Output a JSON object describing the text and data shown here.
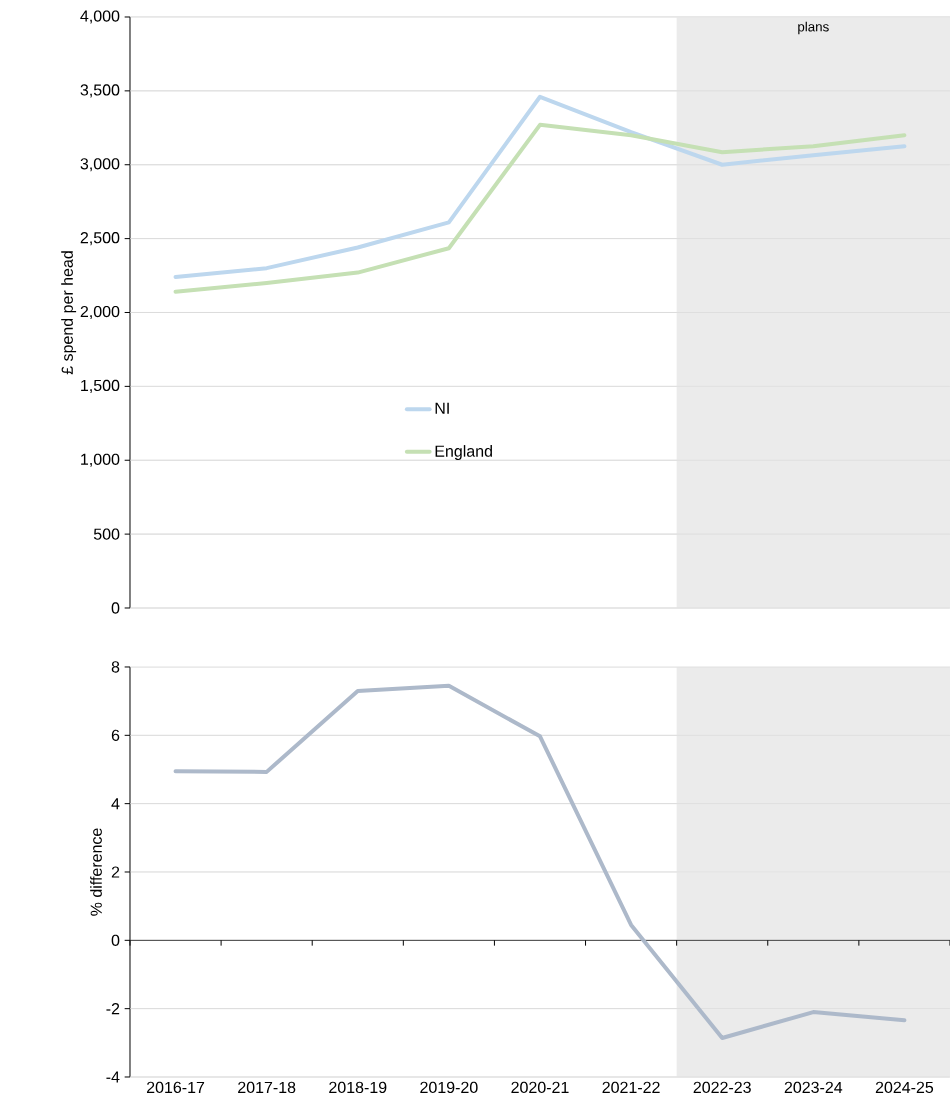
{
  "chart_data": [
    {
      "type": "line",
      "categories": [
        "2016-17",
        "2017-18",
        "2018-19",
        "2019-20",
        "2020-21",
        "2021-22",
        "2022-23",
        "2023-24",
        "2024-25"
      ],
      "series": [
        {
          "name": "NI",
          "color": "#bdd7ee",
          "values": [
            2240,
            2300,
            2440,
            2610,
            3460,
            3220,
            3000,
            3065,
            3125
          ]
        },
        {
          "name": "England",
          "color": "#c5e0b4",
          "values": [
            2140,
            2200,
            2270,
            2435,
            3270,
            3200,
            3085,
            3125,
            3200
          ]
        }
      ],
      "ylabel": "£ spend per head",
      "ylim": [
        0,
        4000
      ],
      "yticks": [
        0,
        {
          "value": 500,
          "label": "500"
        },
        {
          "value": 1000,
          "label": "1,000"
        },
        {
          "value": 1500,
          "label": "1,500"
        },
        {
          "value": 2000,
          "label": "2,000"
        },
        {
          "value": 2500,
          "label": "2,500"
        },
        {
          "value": 3000,
          "label": "3,000"
        },
        {
          "value": 3500,
          "label": "3,500"
        },
        {
          "value": 4000,
          "label": "4,000"
        }
      ],
      "grid": "y",
      "legend": "left",
      "tick_labels": "y",
      "bands": [
        {
          "axis": "x",
          "from": "2022-23",
          "to": "2024-25",
          "label": "plans",
          "color": "#ebebeb"
        }
      ]
    },
    {
      "type": "line",
      "categories": [
        "2016-17",
        "2017-18",
        "2018-19",
        "2019-20",
        "2020-21",
        "2021-22",
        "2022-23",
        "2023-24",
        "2024-25"
      ],
      "values": [
        4.95,
        4.93,
        7.3,
        7.45,
        5.97,
        0.45,
        -2.86,
        -2.1,
        -2.34
      ],
      "color": "#adb9ca",
      "ylabel": "% difference",
      "ylim": [
        -4,
        8
      ],
      "yticks": [
        -4,
        -2,
        0,
        2,
        4,
        6,
        8
      ],
      "grid": "y",
      "bands": [
        {
          "axis": "x",
          "from": "2022-23",
          "to": "2024-25",
          "color": "#ebebeb"
        }
      ]
    }
  ]
}
